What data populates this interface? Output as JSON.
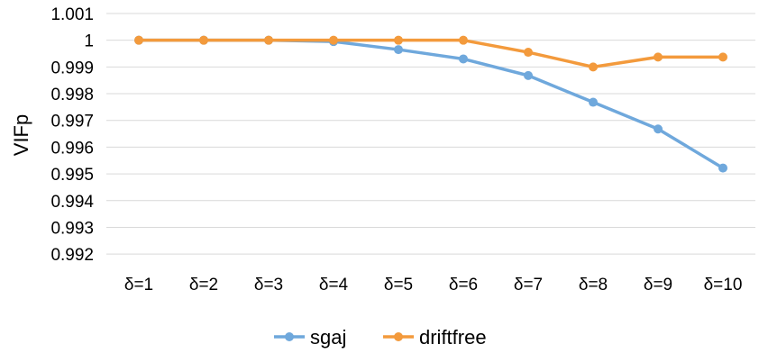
{
  "chart_data": {
    "type": "line",
    "title": "",
    "xlabel": "",
    "ylabel": "VIFp",
    "categories": [
      "δ=1",
      "δ=2",
      "δ=3",
      "δ=4",
      "δ=5",
      "δ=6",
      "δ=7",
      "δ=8",
      "δ=9",
      "δ=10"
    ],
    "ylim": [
      0.9915,
      1.001
    ],
    "yticks": [
      "1.001",
      "1",
      "0.999",
      "0.998",
      "0.997",
      "0.996",
      "0.995",
      "0.994",
      "0.993",
      "0.992"
    ],
    "ytick_values": [
      1.001,
      1.0,
      0.999,
      0.998,
      0.997,
      0.996,
      0.995,
      0.994,
      0.993,
      0.992
    ],
    "grid": true,
    "legend_position": "bottom",
    "series": [
      {
        "name": "sgaj",
        "color": "#6fa8dc",
        "values": [
          1.0,
          1.0,
          1.0,
          0.99995,
          0.99965,
          0.9993,
          0.99868,
          0.99768,
          0.99668,
          0.99522
        ]
      },
      {
        "name": "driftfree",
        "color": "#f39a3c",
        "values": [
          1.0,
          1.0,
          1.0,
          1.0,
          1.0,
          1.0,
          0.99955,
          0.999,
          0.99937,
          0.99937
        ]
      }
    ]
  }
}
